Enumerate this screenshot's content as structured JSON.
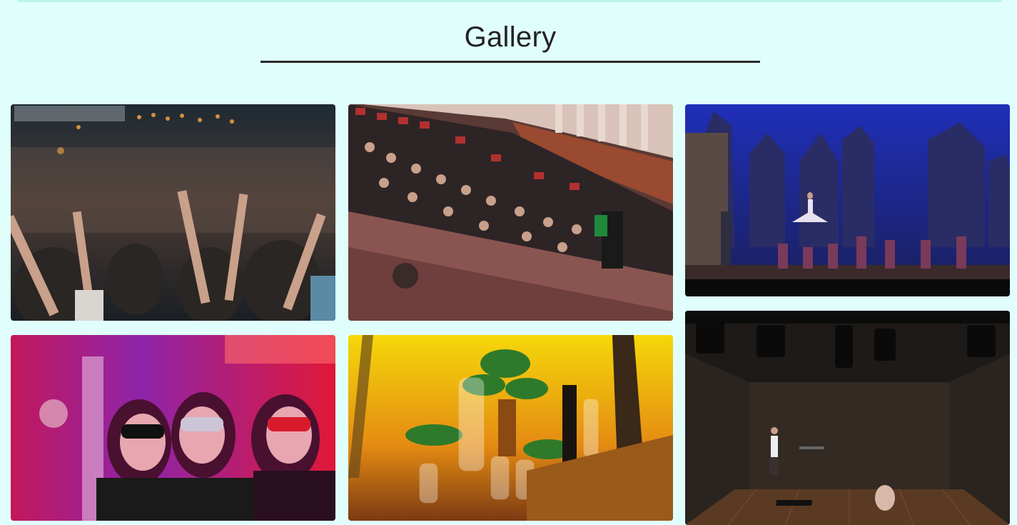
{
  "gallery": {
    "title": "Gallery"
  },
  "colors": {
    "background": "#e0fffc",
    "title": "#222222",
    "underline": "#2a2a2a"
  }
}
